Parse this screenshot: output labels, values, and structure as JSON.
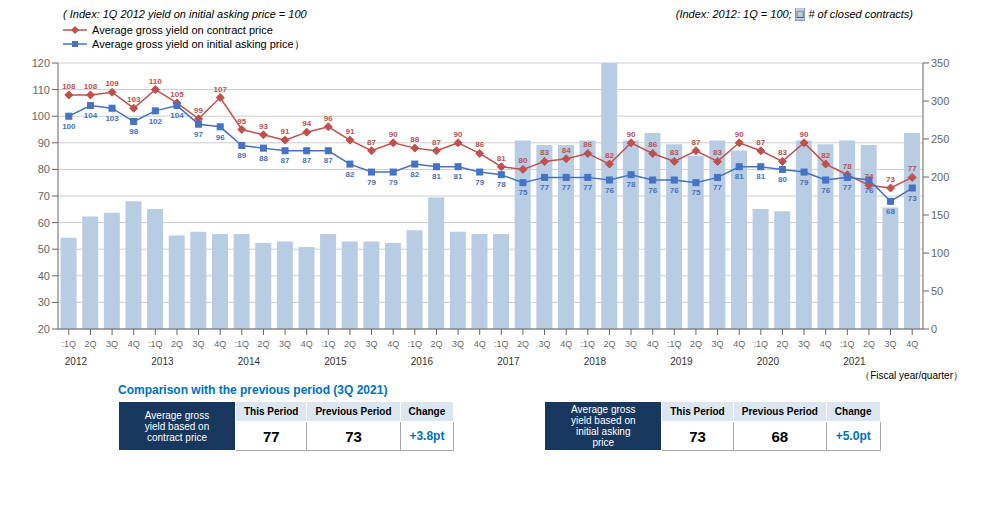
{
  "chart_data": {
    "type": "combo",
    "title": "( Index: 1Q 2012 yield on initial asking price = 100",
    "subtitle": "(Index: 2012: 1Q = 100;  □ # of closed contracts)",
    "categories": [
      ":1Q",
      "2Q",
      "3Q",
      "4Q",
      ":1Q",
      "2Q",
      "3Q",
      "4Q",
      ":1Q",
      "2Q",
      "3Q",
      "4Q",
      ":1Q",
      "2Q",
      "3Q",
      "4Q",
      ":1Q",
      "2Q",
      "3Q",
      "4Q",
      ":1Q",
      "2Q",
      "3Q",
      "4Q",
      ":1Q",
      "2Q",
      "3Q",
      "4Q",
      ":1Q",
      "2Q",
      "3Q",
      "4Q",
      ":1Q",
      "2Q",
      "3Q",
      "4Q",
      ":1Q",
      "2Q",
      "3Q",
      "4Q"
    ],
    "series": [
      {
        "type": "bar",
        "axis": "y2",
        "color": "#b8cce4",
        "values": [
          120,
          148,
          153,
          168,
          158,
          123,
          128,
          125,
          125,
          113,
          115,
          108,
          125,
          115,
          115,
          113,
          130,
          173,
          128,
          125,
          125,
          248,
          242,
          242,
          248,
          350,
          248,
          258,
          243,
          228,
          248,
          235,
          158,
          155,
          248,
          243,
          248,
          242,
          160,
          258
        ]
      },
      {
        "name": "Average gross yield on contract price",
        "type": "line",
        "color": "#c0504d",
        "marker": "diamond",
        "data_labels": true,
        "values": [
          108,
          108,
          109,
          103,
          110,
          105,
          99,
          107,
          95,
          93,
          91,
          94,
          96,
          91,
          87,
          90,
          88,
          87,
          90,
          86,
          81,
          80,
          83,
          84,
          86,
          82,
          90,
          86,
          83,
          87,
          83,
          90,
          87,
          83,
          90,
          82,
          78,
          74,
          73,
          77
        ]
      },
      {
        "name": "Average gross yield on initial asking price）",
        "type": "line",
        "color": "#4472c4",
        "marker": "square",
        "data_labels": true,
        "values": [
          100,
          104,
          103,
          98,
          102,
          104,
          97,
          96,
          89,
          88,
          87,
          87,
          87,
          82,
          79,
          79,
          82,
          81,
          81,
          79,
          78,
          75,
          77,
          77,
          77,
          76,
          78,
          76,
          76,
          75,
          77,
          81,
          81,
          80,
          79,
          76,
          77,
          76,
          68,
          73
        ]
      }
    ],
    "ylim": [
      20,
      120
    ],
    "yticks": [
      20,
      30,
      40,
      50,
      60,
      70,
      80,
      90,
      100,
      110,
      120
    ],
    "y2lim": [
      0,
      350
    ],
    "y2ticks": [
      0,
      50,
      100,
      150,
      200,
      250,
      300,
      350
    ],
    "grid": true,
    "annotations": [
      {
        "text": "2012",
        "at": 0
      },
      {
        "text": "2013",
        "at": 4
      },
      {
        "text": "2014",
        "at": 8
      },
      {
        "text": "2015",
        "at": 12
      },
      {
        "text": "2016",
        "at": 16
      },
      {
        "text": "2017",
        "at": 20
      },
      {
        "text": "2018",
        "at": 24
      },
      {
        "text": "2019",
        "at": 28
      },
      {
        "text": "2020",
        "at": 32
      },
      {
        "text": "2021",
        "at": 36
      },
      {
        "text": "（Fiscal year/quarter）"
      }
    ],
    "table": {
      "title": "Comparison with the previous period (3Q 2021)",
      "color": "#0070c0",
      "header_color": "#17375e",
      "header_light_color": "#dce6f1",
      "columns": [
        "This Period",
        "Previous Period",
        "Change"
      ],
      "rows": [
        {
          "label": "Average gross\nyield based on\ncontract price",
          "values": [
            "77",
            "73",
            "+3.8pt"
          ]
        },
        {
          "label": "Average gross\nyield based on\ninitial asking\nprice",
          "values": [
            "73",
            "68",
            "+5.0pt"
          ]
        }
      ]
    }
  }
}
